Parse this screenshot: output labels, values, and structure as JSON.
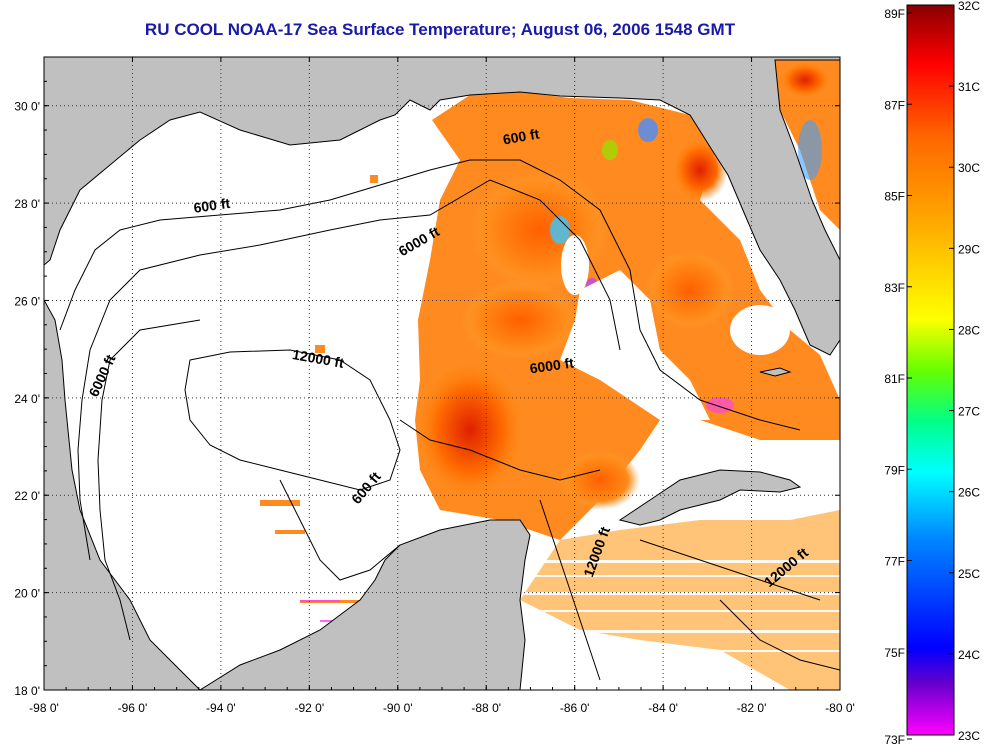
{
  "title": "RU COOL  NOAA-17  Sea Surface Temperature;  August 06, 2006 1548 GMT",
  "map": {
    "lon_range": [
      -98,
      -80
    ],
    "lat_range": [
      18,
      31
    ],
    "lon_ticks": [
      {
        "v": -98,
        "label": "-98 0'"
      },
      {
        "v": -96,
        "label": "-96 0'"
      },
      {
        "v": -94,
        "label": "-94 0'"
      },
      {
        "v": -92,
        "label": "-92 0'"
      },
      {
        "v": -90,
        "label": "-90 0'"
      },
      {
        "v": -88,
        "label": "-88 0'"
      },
      {
        "v": -86,
        "label": "-86 0'"
      },
      {
        "v": -84,
        "label": "-84 0'"
      },
      {
        "v": -82,
        "label": "-82 0'"
      },
      {
        "v": -80,
        "label": "-80 0'"
      }
    ],
    "lat_ticks": [
      {
        "v": 18,
        "label": "18 0'"
      },
      {
        "v": 20,
        "label": "20 0'"
      },
      {
        "v": 22,
        "label": "22 0'"
      },
      {
        "v": 24,
        "label": "24 0'"
      },
      {
        "v": 26,
        "label": "26 0'"
      },
      {
        "v": 28,
        "label": "28 0'"
      },
      {
        "v": 30,
        "label": "30 0'"
      }
    ],
    "grid": true,
    "land_color": "#c0c0c0",
    "no_data_color": "#ffffff",
    "contour_labels": [
      {
        "text": "600 ft",
        "lon": -94.6,
        "lat": 27.8,
        "angle": -8
      },
      {
        "text": "600 ft",
        "lon": -87.6,
        "lat": 29.2,
        "angle": -10
      },
      {
        "text": "6000 ft",
        "lon": -89.9,
        "lat": 26.9,
        "angle": -30
      },
      {
        "text": "6000 ft",
        "lon": -96.8,
        "lat": 24.0,
        "angle": -65
      },
      {
        "text": "6000 ft",
        "lon": -87.0,
        "lat": 24.5,
        "angle": -8
      },
      {
        "text": "12000 ft",
        "lon": -92.4,
        "lat": 24.8,
        "angle": 10
      },
      {
        "text": "600 ft",
        "lon": -90.9,
        "lat": 21.8,
        "angle": -50
      },
      {
        "text": "12000 ft",
        "lon": -85.6,
        "lat": 20.3,
        "angle": -70
      },
      {
        "text": "12000 ft",
        "lon": -81.6,
        "lat": 20.1,
        "angle": -40
      }
    ]
  },
  "colorbar": {
    "colors": [
      "#ff00ff",
      "#6600cc",
      "#0000ff",
      "#0088ff",
      "#00ffff",
      "#00ff88",
      "#66ff00",
      "#ffff00",
      "#ffaa00",
      "#ff6600",
      "#ff0000",
      "#880000"
    ],
    "stops": [
      0,
      0.07,
      0.12,
      0.27,
      0.36,
      0.43,
      0.5,
      0.57,
      0.7,
      0.82,
      0.92,
      1
    ],
    "celsius_ticks": [
      "32C",
      "31C",
      "30C",
      "29C",
      "28C",
      "27C",
      "26C",
      "25C",
      "24C",
      "23C"
    ],
    "fahrenheit_ticks": [
      {
        "label": "89F",
        "f": 89
      },
      {
        "label": "87F",
        "f": 87
      },
      {
        "label": "85F",
        "f": 85
      },
      {
        "label": "83F",
        "f": 83
      },
      {
        "label": "81F",
        "f": 81
      },
      {
        "label": "79F",
        "f": 79
      },
      {
        "label": "77F",
        "f": 77
      },
      {
        "label": "75F",
        "f": 75
      },
      {
        "label": "73F",
        "f": 73
      }
    ]
  }
}
